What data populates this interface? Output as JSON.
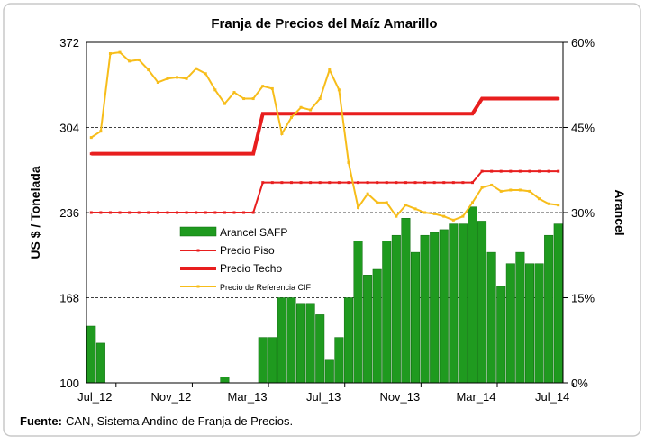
{
  "chart_data": {
    "type": "combo",
    "title": "Franja de Precios del Maíz Amarillo",
    "ylabel": "US $ / Tonelada",
    "y2label": "Arancel",
    "source_label": "Fuente:",
    "source_text": "CAN, Sistema Andino de Franja de Precios.",
    "categories": [
      "Jul_12",
      null,
      null,
      null,
      null,
      null,
      null,
      null,
      "Nov_12",
      null,
      null,
      null,
      null,
      null,
      null,
      null,
      "Mar_13",
      null,
      null,
      null,
      null,
      null,
      null,
      null,
      "Jul_13",
      null,
      null,
      null,
      null,
      null,
      null,
      null,
      "Nov_13",
      null,
      null,
      null,
      null,
      null,
      null,
      null,
      "Mar_14",
      null,
      null,
      null,
      null,
      null,
      null,
      null,
      "Jul_14",
      null
    ],
    "ylim": [
      100,
      372
    ],
    "yticks": [
      100,
      168,
      236,
      304,
      372
    ],
    "y2lim": [
      0,
      60
    ],
    "y2ticks": [
      {
        "value": 0,
        "label": "0%"
      },
      {
        "value": 15,
        "label": "15%"
      },
      {
        "value": 30,
        "label": "30%"
      },
      {
        "value": 45,
        "label": "45%"
      },
      {
        "value": 60,
        "label": "60%"
      }
    ],
    "grid": true,
    "legend": "inside-center-left",
    "series": [
      {
        "name": "Arancel SAFP",
        "type": "bar",
        "axis": "y2",
        "color": "#1f9a1f",
        "values": [
          10,
          7,
          0,
          0,
          0,
          0,
          0,
          0,
          0,
          0,
          0,
          0,
          0,
          0,
          1,
          0,
          0,
          0,
          8,
          8,
          15,
          15,
          14,
          14,
          12,
          4,
          8,
          15,
          25,
          19,
          20,
          25,
          26,
          29,
          23,
          26,
          26.5,
          27,
          28,
          28,
          31,
          28.5,
          23,
          17,
          21,
          23,
          21,
          21,
          26,
          28
        ]
      },
      {
        "name": "Precio Piso",
        "type": "line",
        "color": "#e81e1e",
        "line_width": 2,
        "values": [
          236,
          236,
          236,
          236,
          236,
          236,
          236,
          236,
          236,
          236,
          236,
          236,
          236,
          236,
          236,
          236,
          236,
          236,
          260,
          260,
          260,
          260,
          260,
          260,
          260,
          260,
          260,
          260,
          260,
          260,
          260,
          260,
          260,
          260,
          260,
          260,
          260,
          260,
          260,
          260,
          260,
          269,
          269,
          269,
          269,
          269,
          269,
          269,
          269,
          269
        ]
      },
      {
        "name": "Precio Techo",
        "type": "line",
        "color": "#e81e1e",
        "line_width": 4,
        "values": [
          283,
          283,
          283,
          283,
          283,
          283,
          283,
          283,
          283,
          283,
          283,
          283,
          283,
          283,
          283,
          283,
          283,
          283,
          315,
          315,
          315,
          315,
          315,
          315,
          315,
          315,
          315,
          315,
          315,
          315,
          315,
          315,
          315,
          315,
          315,
          315,
          315,
          315,
          315,
          315,
          315,
          327,
          327,
          327,
          327,
          327,
          327,
          327,
          327,
          327
        ]
      },
      {
        "name": "Precio de Referencia CIF",
        "type": "line",
        "color": "#f7bd1a",
        "line_width": 2,
        "values": [
          296,
          301,
          363,
          364,
          357,
          358,
          350,
          340,
          343,
          344,
          343,
          351,
          347,
          334,
          323,
          332,
          327,
          327,
          337,
          335,
          299,
          312,
          320,
          318,
          327,
          350,
          334,
          276,
          240,
          251,
          244,
          244,
          233,
          242,
          239,
          236,
          235,
          233,
          230,
          233,
          244,
          256,
          258,
          253,
          254,
          254,
          253,
          247,
          243,
          242
        ]
      }
    ]
  }
}
